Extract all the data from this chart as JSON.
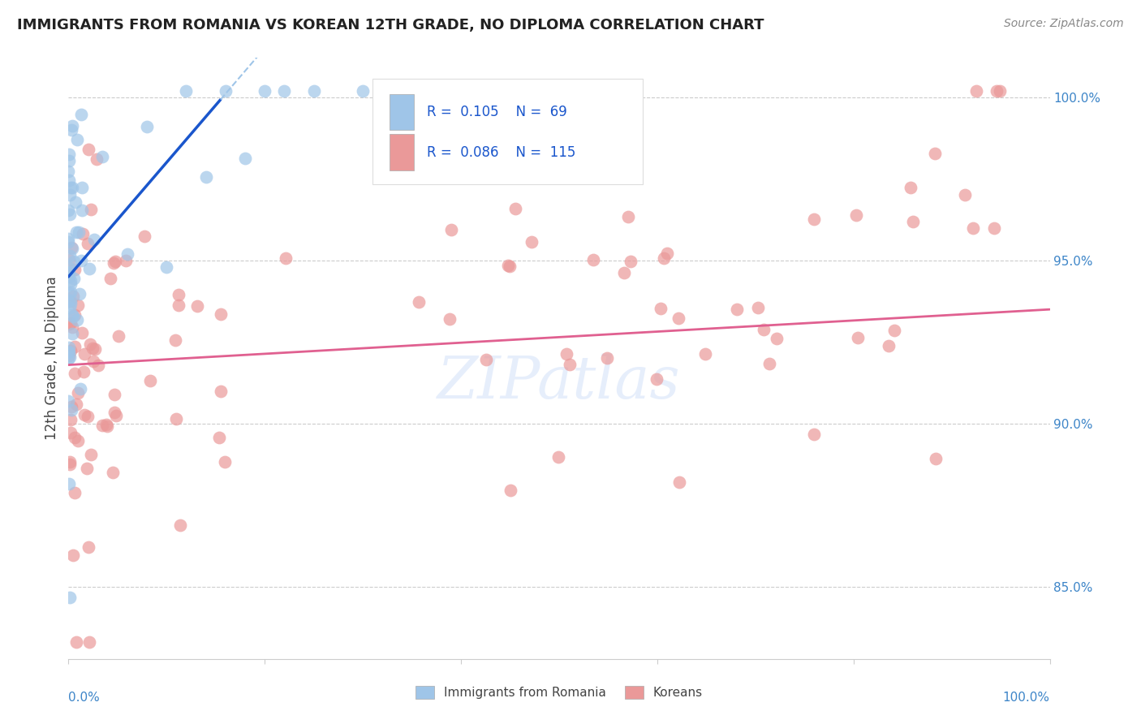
{
  "title": "IMMIGRANTS FROM ROMANIA VS KOREAN 12TH GRADE, NO DIPLOMA CORRELATION CHART",
  "source": "Source: ZipAtlas.com",
  "ylabel": "12th Grade, No Diploma",
  "yaxis_labels": [
    "85.0%",
    "90.0%",
    "95.0%",
    "100.0%"
  ],
  "yaxis_values": [
    0.85,
    0.9,
    0.95,
    1.0
  ],
  "legend_label1": "Immigrants from Romania",
  "legend_label2": "Koreans",
  "color_blue": "#9fc5e8",
  "color_pink": "#ea9999",
  "color_blue_line": "#1a56cc",
  "color_pink_line": "#e06090",
  "color_dashed_line": "#9fc5e8",
  "xlim": [
    0.0,
    1.0
  ],
  "ylim": [
    0.828,
    1.012
  ],
  "title_fontsize": 13,
  "source_fontsize": 10,
  "marker_size": 130,
  "marker_alpha": 0.7
}
